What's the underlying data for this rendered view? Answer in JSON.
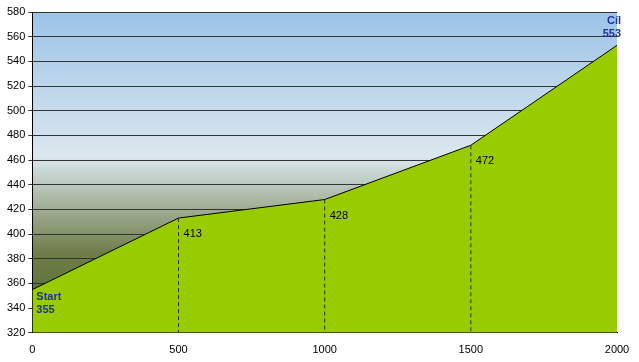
{
  "chart_data": {
    "type": "line",
    "x": [
      0,
      500,
      1000,
      1500,
      2000
    ],
    "values": [
      355,
      413,
      428,
      472,
      553
    ],
    "color": "#99cc00",
    "xlim": [
      0,
      2000
    ],
    "xticks": [
      0,
      500,
      1000,
      1500,
      2000
    ],
    "ylim": [
      320,
      580
    ],
    "yticks": [
      320,
      340,
      360,
      380,
      400,
      420,
      440,
      460,
      480,
      500,
      520,
      540,
      560,
      580
    ],
    "grid": true,
    "data_labels": true,
    "annotations": [
      {
        "x": 0,
        "y": 355,
        "text": "Start"
      },
      {
        "x": 2000,
        "y": 553,
        "text": "Cíl"
      }
    ]
  }
}
